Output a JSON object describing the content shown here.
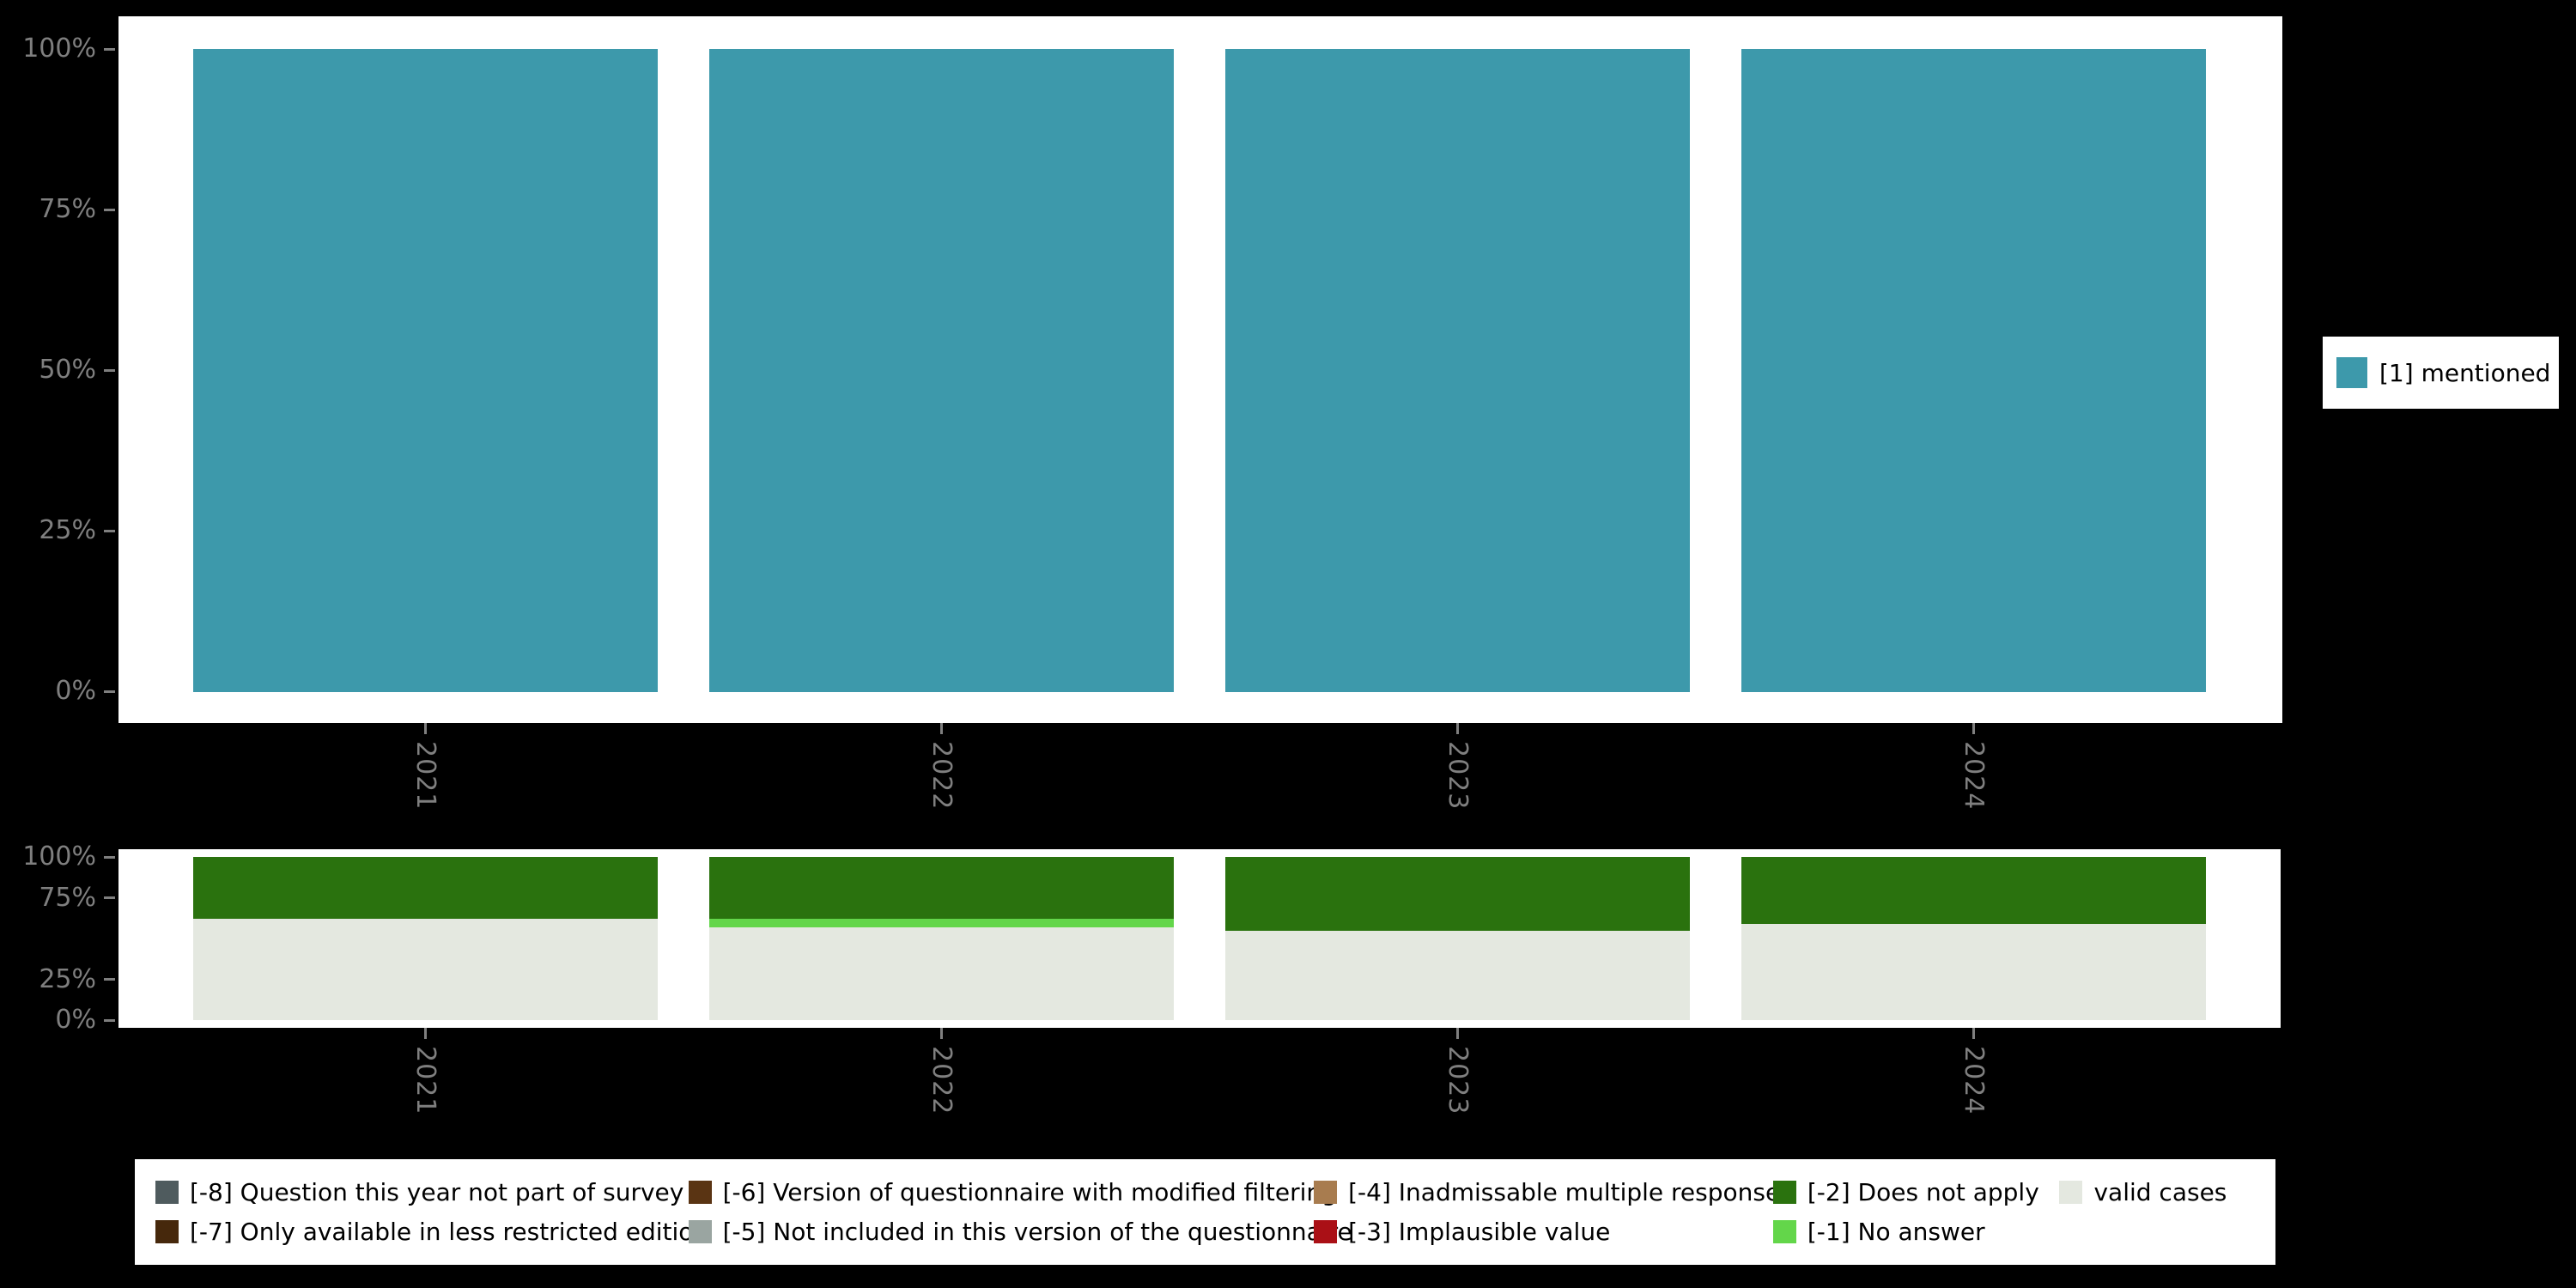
{
  "colors": {
    "background": "#000000",
    "panel_background": "#ffffff",
    "axis_text": "#7f7f7f",
    "legend_text": "#000000",
    "series": {
      "[1] mentioned": "#3d99ab",
      "valid cases": "#e4e8e0",
      "[-1] No answer": "#63d64a",
      "[-2] Does not apply": "#2a720e",
      "[-3] Implausible value": "#aa1016",
      "[-4] Inadmissable multiple response": "#a87c4f",
      "[-5] Not included in this version of the questionnaire": "#9aa5a1",
      "[-6] Version of questionnaire with modified filtering": "#5a3413",
      "[-7] Only available in less restricted edition": "#46280c",
      "[-8] Question this year not part of survey": "#4f5b5e"
    }
  },
  "legend_right": {
    "items": [
      {
        "label": "[1] mentioned",
        "color": "#3d99ab"
      }
    ]
  },
  "legend_bottom": {
    "rows": [
      [
        {
          "label": "[-8] Question this year not part of survey",
          "color": "#4f5b5e"
        },
        {
          "label": "[-6] Version of questionnaire with modified filtering",
          "color": "#5a3413"
        },
        {
          "label": "[-4] Inadmissable multiple response",
          "color": "#a87c4f"
        },
        {
          "label": "[-2] Does not apply",
          "color": "#2a720e"
        },
        {
          "label": "valid cases",
          "color": "#e4e8e0"
        }
      ],
      [
        {
          "label": "[-7] Only available in less restricted edition",
          "color": "#46280c"
        },
        {
          "label": "[-5] Not included in this version of the questionnaire",
          "color": "#9aa5a1"
        },
        {
          "label": "[-3] Implausible value",
          "color": "#aa1016"
        },
        {
          "label": "[-1] No answer",
          "color": "#63d64a"
        }
      ]
    ]
  },
  "chart_data": [
    {
      "type": "bar",
      "stacked": true,
      "percent": true,
      "title": "",
      "xlabel": "",
      "ylabel": "",
      "categories": [
        "2021",
        "2022",
        "2023",
        "2024"
      ],
      "series": [
        {
          "name": "[1] mentioned",
          "values": [
            100,
            100,
            100,
            100
          ]
        }
      ],
      "ylim": [
        0,
        100
      ],
      "yticks": [
        "0%",
        "25%",
        "50%",
        "75%",
        "100%"
      ],
      "grid": false,
      "legend_position": "right"
    },
    {
      "type": "bar",
      "stacked": true,
      "percent": true,
      "title": "",
      "xlabel": "",
      "ylabel": "",
      "categories": [
        "2021",
        "2022",
        "2023",
        "2024"
      ],
      "series": [
        {
          "name": "valid cases",
          "values": [
            62,
            57,
            55,
            59
          ]
        },
        {
          "name": "[-1] No answer",
          "values": [
            0,
            5,
            0,
            0
          ]
        },
        {
          "name": "[-2] Does not apply",
          "values": [
            38,
            38,
            45,
            41
          ]
        }
      ],
      "ylim": [
        0,
        100
      ],
      "yticks": [
        "0%",
        "25%",
        "75%",
        "100%"
      ],
      "grid": false,
      "legend_position": "bottom"
    }
  ]
}
